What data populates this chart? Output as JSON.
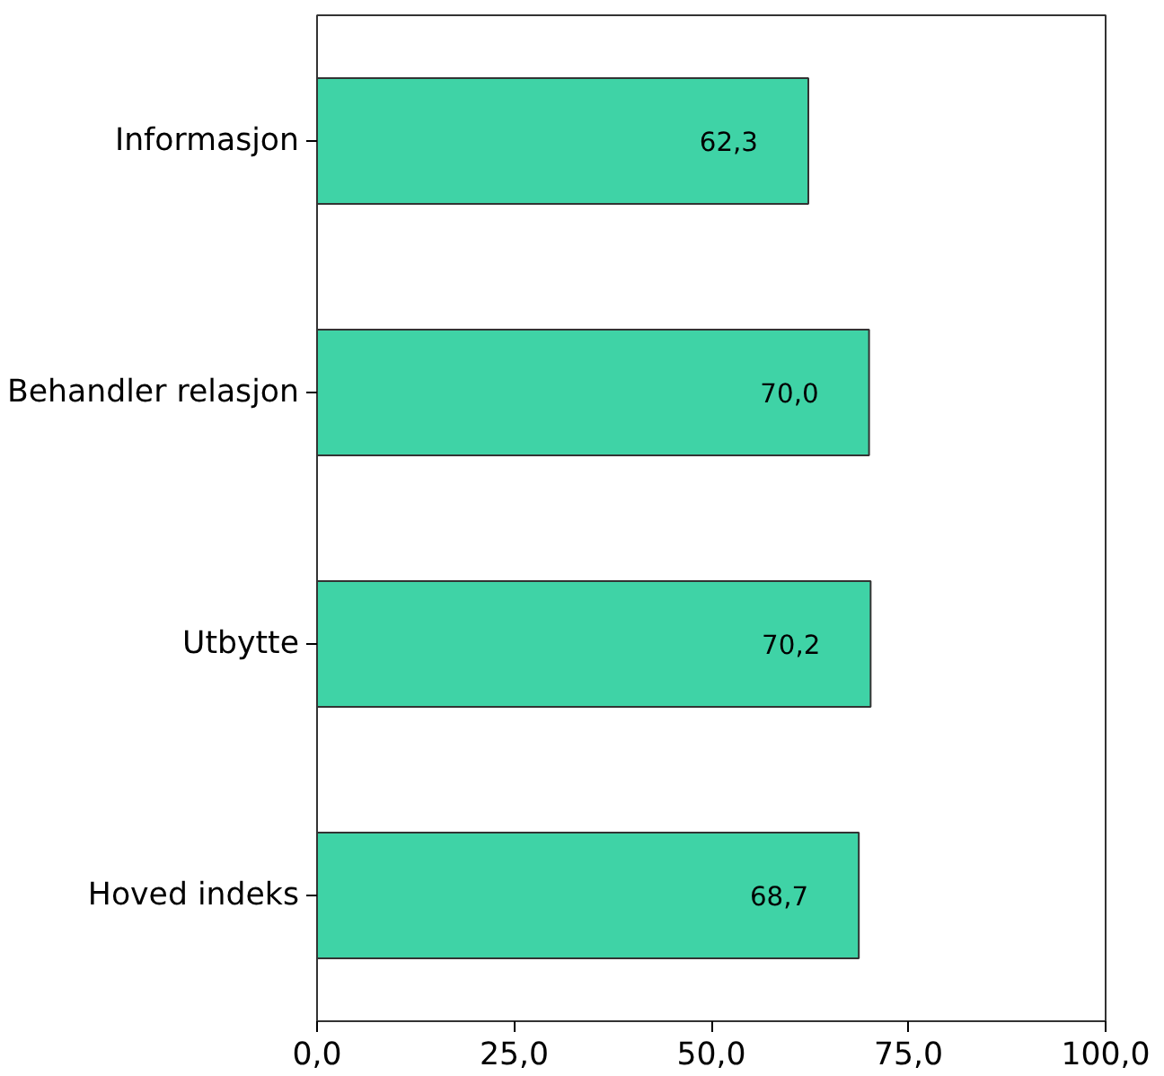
{
  "chart_data": {
    "type": "bar",
    "orientation": "horizontal",
    "categories": [
      "Informasjon",
      "Behandler relasjon",
      "Utbytte",
      "Hoved indeks"
    ],
    "values": [
      62.3,
      70.0,
      70.2,
      68.7
    ],
    "value_labels": [
      "62,3",
      "70,0",
      "70,2",
      "68,7"
    ],
    "color": "#3fd3a6",
    "xlim": [
      0,
      100
    ],
    "xticks": [
      {
        "value": 0,
        "label": "0,0"
      },
      {
        "value": 25,
        "label": "25,0"
      },
      {
        "value": 50,
        "label": "50,0"
      },
      {
        "value": 75,
        "label": "75,0"
      },
      {
        "value": 100,
        "label": "100,0"
      }
    ],
    "grid": false
  }
}
